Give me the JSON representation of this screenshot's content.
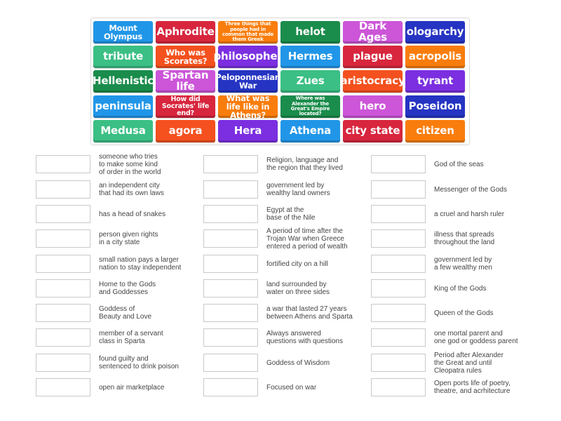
{
  "colors": {
    "blue": "#1e88e5",
    "red": "#d32f2f",
    "orange_small": "#f57c00",
    "dark_green": "#1b8a4a",
    "pink": "#cc55d8",
    "navy": "#2233bb",
    "teal": "#3dbb84",
    "orange_red": "#f4511e",
    "purple": "#7b2fe0",
    "orange": "#fb7c0c"
  },
  "tiles": [
    {
      "label": "Mount Olympus",
      "color": "#2196e8",
      "size": "m"
    },
    {
      "label": "Aphrodite",
      "color": "#d7263d",
      "size": "l"
    },
    {
      "label": "Three things that people had in common that made them Greek",
      "color": "#f97d0c",
      "size": "xs"
    },
    {
      "label": "helot",
      "color": "#1a8c4b",
      "size": "l"
    },
    {
      "label": "Dark Ages",
      "color": "#cc55d8",
      "size": "l"
    },
    {
      "label": "ologarchy",
      "color": "#2534c2",
      "size": "l"
    },
    {
      "label": "tribute",
      "color": "#3bbf84",
      "size": "l"
    },
    {
      "label": "Who was Scorates?",
      "color": "#f4511e",
      "size": "m"
    },
    {
      "label": "philosopher",
      "color": "#7b2fe0",
      "size": "l"
    },
    {
      "label": "Hermes",
      "color": "#2196e8",
      "size": "l"
    },
    {
      "label": "plague",
      "color": "#d7263d",
      "size": "l"
    },
    {
      "label": "acropolis",
      "color": "#f97d0c",
      "size": "l"
    },
    {
      "label": "Hellenistic",
      "color": "#1a8c4b",
      "size": "l"
    },
    {
      "label": "Spartan life",
      "color": "#cc55d8",
      "size": "l"
    },
    {
      "label": "Peloponnesian War",
      "color": "#2534c2",
      "size": "m"
    },
    {
      "label": "Zues",
      "color": "#3bbf84",
      "size": "l"
    },
    {
      "label": "aristocracy",
      "color": "#f4511e",
      "size": "l"
    },
    {
      "label": "tyrant",
      "color": "#7b2fe0",
      "size": "l"
    },
    {
      "label": "peninsula",
      "color": "#2196e8",
      "size": "l"
    },
    {
      "label": "How did Socrates' life end?",
      "color": "#d7263d",
      "size": "s"
    },
    {
      "label": "What was life like in Athens?",
      "color": "#f97d0c",
      "size": "m"
    },
    {
      "label": "Where was Alexander the Great's Empire located?",
      "color": "#1a8c4b",
      "size": "xs"
    },
    {
      "label": "hero",
      "color": "#cc55d8",
      "size": "l"
    },
    {
      "label": "Poseidon",
      "color": "#2534c2",
      "size": "l"
    },
    {
      "label": "Medusa",
      "color": "#3bbf84",
      "size": "l"
    },
    {
      "label": "agora",
      "color": "#f4511e",
      "size": "l"
    },
    {
      "label": "Hera",
      "color": "#7b2fe0",
      "size": "l"
    },
    {
      "label": "Athena",
      "color": "#2196e8",
      "size": "l"
    },
    {
      "label": "city state",
      "color": "#d7263d",
      "size": "l"
    },
    {
      "label": "citizen",
      "color": "#f97d0c",
      "size": "l"
    }
  ],
  "definitions": {
    "col1": [
      "someone who tries\nto make some kind\nof order in the world",
      "an independent city\nthat had its own laws",
      "has a head of snakes",
      "person given rights\nin a city state",
      "small nation pays a larger\nnation to stay independent",
      "Home to the Gods\nand Goddesses",
      "Goddess of\nBeauty and Love",
      "member of a servant\nclass in Sparta",
      "found guilty and\nsentenced to drink poison",
      "open air marketplace"
    ],
    "col2": [
      "Religion, language and\nthe region that they lived",
      "government led by\nwealthy land owners",
      "Egypt at the\nbase of the Nile",
      "A period of time after the\nTrojan War when Greece\nentered a period of wealth",
      "fortified city on a hill",
      "land surrounded by\nwater on three sides",
      "a war that lasted 27 years\nbetween Athens and Sparta",
      "Always answered\nquestions with questions",
      "Goddess of Wisdom",
      "Focused on war"
    ],
    "col3": [
      "God of the seas",
      "Messenger of the Gods",
      "a cruel and harsh ruler",
      "illness that spreads\nthroughout the land",
      "government led by\na few wealthy men",
      "King of the Gods",
      "Queen of the Gods",
      "one mortal parent and\none god or goddess parent",
      "Period after Alexander\nthe Great and until\nCleopatra rules",
      "Open ports life of poetry,\ntheatre, and acrhitecture"
    ]
  }
}
